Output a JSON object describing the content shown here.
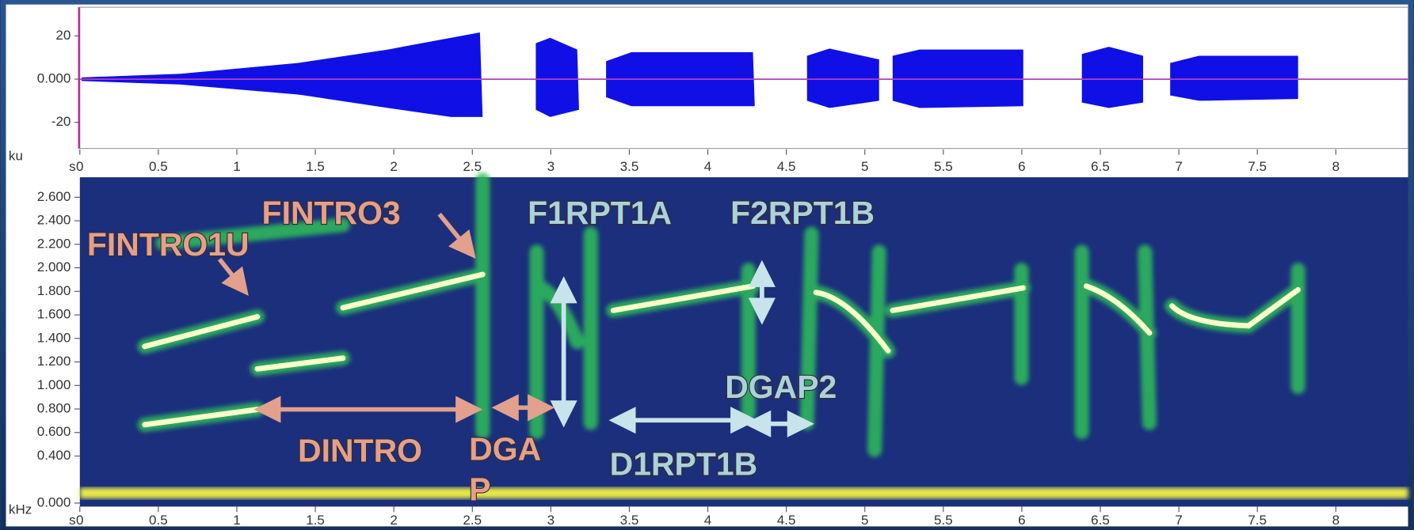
{
  "waveform": {
    "unit": "ku",
    "ylim": [
      -32.1,
      33.3
    ],
    "yticks": [
      20,
      {
        "value": 0,
        "label": "0.000"
      },
      -20
    ]
  },
  "time_axis": {
    "unit": "s",
    "xlim": [
      0,
      8.46
    ],
    "xticks": [
      0,
      0.5,
      1,
      1.5,
      2,
      2.5,
      3,
      3.5,
      4,
      4.5,
      5,
      5.5,
      6,
      6.5,
      7,
      7.5,
      8
    ]
  },
  "spectrogram": {
    "unit": "kHz",
    "ylim": [
      -0.03,
      2.77
    ],
    "yticks": [
      {
        "value": 2.6,
        "label": "2.600"
      },
      {
        "value": 2.4,
        "label": "2.400"
      },
      {
        "value": 2.2,
        "label": "2.200"
      },
      {
        "value": 2.0,
        "label": "2.000"
      },
      {
        "value": 1.8,
        "label": "1.800"
      },
      {
        "value": 1.6,
        "label": "1.600"
      },
      {
        "value": 1.4,
        "label": "1.400"
      },
      {
        "value": 1.2,
        "label": "1.200"
      },
      {
        "value": 1.0,
        "label": "1.000"
      },
      {
        "value": 0.8,
        "label": "0.800"
      },
      {
        "value": 0.6,
        "label": "0.600"
      },
      {
        "value": 0.4,
        "label": "0.400"
      },
      {
        "value": 0,
        "label": "0.000"
      }
    ]
  },
  "annotations": [
    {
      "text": "FINTRO1U",
      "color": "#e3a08c"
    },
    {
      "text": "FINTRO3",
      "color": "#e3a08c"
    },
    {
      "text": "F1RPT1A",
      "color": "#a9d2dc"
    },
    {
      "text": "F2RPT1B",
      "color": "#a9d2dc"
    },
    {
      "text": "DINTRO",
      "color": "#e3a08c"
    },
    {
      "text_lines": [
        "DGA",
        "P"
      ],
      "color": "#e3a08c"
    },
    {
      "text": "DGAP2",
      "color": "#a9d2dc"
    },
    {
      "text": "D1RPT1B",
      "color": "#a9d2dc"
    }
  ]
}
